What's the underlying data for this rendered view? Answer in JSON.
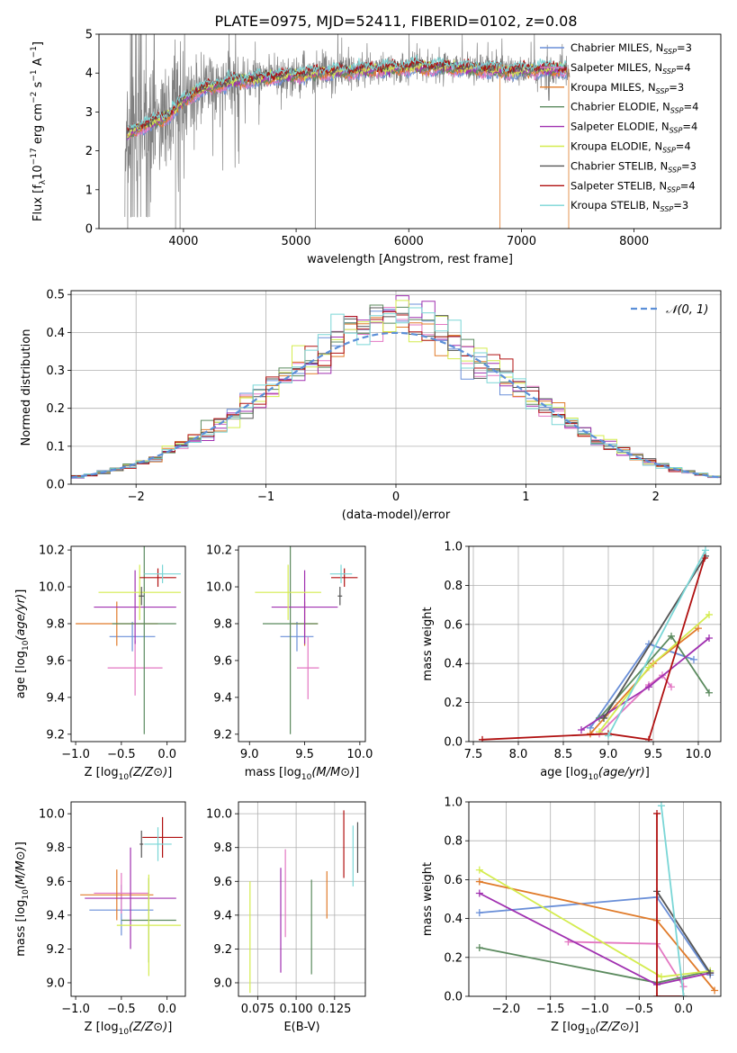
{
  "title": "PLATE=0975, MJD=52411, FIBERID=0102, z=0.08",
  "colors": {
    "chabrier_miles": "#6a8fd8",
    "salpeter_miles": "#e377c2",
    "kroupa_miles": "#e07b2a",
    "chabrier_elodie": "#5b8a5e",
    "salpeter_elodie": "#a030b0",
    "kroupa_elodie": "#d4ec4e",
    "chabrier_stelib": "#555555",
    "salpeter_stelib": "#b01010",
    "kroupa_stelib": "#7ad6d6",
    "data": "#808080",
    "normal": "#5b8fd8"
  },
  "chart_data": [
    {
      "type": "line",
      "id": "spectrum",
      "xlabel": "wavelength [Angstrom, rest frame]",
      "ylabel": "Flux [f_λ10^-17 erg cm^-2 s^-1 A^-1]",
      "xlim": [
        3250,
        8770
      ],
      "ylim": [
        0,
        5
      ],
      "xticks": [
        "4000",
        "5000",
        "6000",
        "7000",
        "8000"
      ],
      "yticks": [
        "0",
        "1",
        "2",
        "3",
        "4",
        "5"
      ],
      "legend_position": "right",
      "legend": [
        {
          "key": "chabrier_miles",
          "label": "Chabrier MILES, N",
          "sub": "SSP",
          "tail": "=3"
        },
        {
          "key": "salpeter_miles",
          "label": "Salpeter MILES, N",
          "sub": "SSP",
          "tail": "=4"
        },
        {
          "key": "kroupa_miles",
          "label": "Kroupa MILES, N",
          "sub": "SSP",
          "tail": "=3"
        },
        {
          "key": "chabrier_elodie",
          "label": "Chabrier ELODIE, N",
          "sub": "SSP",
          "tail": "=4"
        },
        {
          "key": "salpeter_elodie",
          "label": "Salpeter ELODIE, N",
          "sub": "SSP",
          "tail": "=4"
        },
        {
          "key": "kroupa_elodie",
          "label": "Kroupa ELODIE, N",
          "sub": "SSP",
          "tail": "=4"
        },
        {
          "key": "chabrier_stelib",
          "label": "Chabrier STELIB, N",
          "sub": "SSP",
          "tail": "=3"
        },
        {
          "key": "salpeter_stelib",
          "label": "Salpeter STELIB, N",
          "sub": "SSP",
          "tail": "=4"
        },
        {
          "key": "kroupa_stelib",
          "label": "Kroupa STELIB, N",
          "sub": "SSP",
          "tail": "=3"
        }
      ],
      "continuum": {
        "x": [
          3500,
          3600,
          3700,
          3800,
          3900,
          4000,
          4100,
          4200,
          4300,
          4500,
          4800,
          5000,
          5200,
          5500,
          5800,
          6000,
          6300,
          6600,
          6900,
          7200,
          7400
        ],
        "y": [
          2.4,
          2.6,
          2.7,
          2.8,
          3.0,
          3.3,
          3.5,
          3.6,
          3.7,
          3.8,
          3.9,
          3.95,
          4.0,
          4.05,
          4.1,
          4.15,
          4.15,
          4.1,
          4.05,
          4.1,
          4.1
        ]
      }
    },
    {
      "type": "line",
      "id": "residuals",
      "xlabel": "(data-model)/error",
      "ylabel": "Normed distribution",
      "xlim": [
        -2.5,
        2.5
      ],
      "ylim": [
        0,
        0.51
      ],
      "xticks": [
        "−2",
        "−1",
        "0",
        "1",
        "2"
      ],
      "yticks": [
        "0.0",
        "0.1",
        "0.2",
        "0.3",
        "0.4",
        "0.5"
      ],
      "legend_position": "top-right",
      "normal_label": "𝒩(0, 1)",
      "bin_width": 0.1
    },
    {
      "type": "scatter",
      "id": "age_vs_Z",
      "xlabel": "Z [log10(Z/Z⊙)]",
      "ylabel": "age [log10(age/yr)]",
      "xlim": [
        -1.05,
        0.2
      ],
      "ylim": [
        9.16,
        10.22
      ],
      "xticks": [
        "−1.0",
        "−0.5",
        "0.0"
      ],
      "yticks": [
        "9.2",
        "9.4",
        "9.6",
        "9.8",
        "10.0",
        "10.2"
      ],
      "points": [
        {
          "key": "chabrier_miles",
          "x": -0.38,
          "xerr": 0.25,
          "y": 9.73,
          "yerr": 0.08
        },
        {
          "key": "salpeter_miles",
          "x": -0.35,
          "xerr": 0.3,
          "y": 9.56,
          "yerr": 0.15
        },
        {
          "key": "kroupa_miles",
          "x": -0.55,
          "xerr": 0.45,
          "y": 9.8,
          "yerr": 0.12
        },
        {
          "key": "chabrier_elodie",
          "x": -0.25,
          "xerr": 0.35,
          "y": 9.8,
          "yerr": 0.6
        },
        {
          "key": "salpeter_elodie",
          "x": -0.35,
          "xerr": 0.45,
          "y": 9.89,
          "yerr": 0.2
        },
        {
          "key": "kroupa_elodie",
          "x": -0.3,
          "xerr": 0.45,
          "y": 9.97,
          "yerr": 0.15
        },
        {
          "key": "chabrier_stelib",
          "x": -0.28,
          "xerr": 0.03,
          "y": 9.95,
          "yerr": 0.05
        },
        {
          "key": "salpeter_stelib",
          "x": -0.1,
          "xerr": 0.2,
          "y": 10.05,
          "yerr": 0.05
        },
        {
          "key": "kroupa_stelib",
          "x": -0.05,
          "xerr": 0.2,
          "y": 10.07,
          "yerr": 0.05
        }
      ]
    },
    {
      "type": "scatter",
      "id": "age_vs_mass",
      "xlabel": "mass [log10(M/M⊙)]",
      "ylabel": "",
      "xlim": [
        8.9,
        10.05
      ],
      "ylim": [
        9.16,
        10.22
      ],
      "xticks": [
        "9.0",
        "9.5",
        "10.0"
      ],
      "yticks": [
        "9.2",
        "9.4",
        "9.6",
        "9.8",
        "10.0",
        "10.2"
      ],
      "points": [
        {
          "key": "chabrier_miles",
          "x": 9.43,
          "xerr": 0.15,
          "y": 9.73,
          "yerr": 0.08
        },
        {
          "key": "salpeter_miles",
          "x": 9.53,
          "xerr": 0.1,
          "y": 9.56,
          "yerr": 0.17
        },
        {
          "key": "kroupa_miles",
          "x": 9.5,
          "xerr": 0.12,
          "y": 9.8,
          "yerr": 0.12
        },
        {
          "key": "chabrier_elodie",
          "x": 9.37,
          "xerr": 0.25,
          "y": 9.8,
          "yerr": 0.6
        },
        {
          "key": "salpeter_elodie",
          "x": 9.5,
          "xerr": 0.3,
          "y": 9.89,
          "yerr": 0.2
        },
        {
          "key": "kroupa_elodie",
          "x": 9.35,
          "xerr": 0.3,
          "y": 9.97,
          "yerr": 0.15
        },
        {
          "key": "chabrier_stelib",
          "x": 9.82,
          "xerr": 0.02,
          "y": 9.95,
          "yerr": 0.05
        },
        {
          "key": "salpeter_stelib",
          "x": 9.86,
          "xerr": 0.12,
          "y": 10.05,
          "yerr": 0.05
        },
        {
          "key": "kroupa_stelib",
          "x": 9.83,
          "xerr": 0.1,
          "y": 10.07,
          "yerr": 0.05
        }
      ]
    },
    {
      "type": "line",
      "id": "weight_vs_age",
      "xlabel": "age [log10(age/yr)]",
      "ylabel": "mass weight",
      "xlim": [
        7.45,
        10.25
      ],
      "ylim": [
        0,
        1
      ],
      "xticks": [
        "7.5",
        "8.0",
        "8.5",
        "9.0",
        "9.5",
        "10.0"
      ],
      "yticks": [
        "0.0",
        "0.2",
        "0.4",
        "0.6",
        "0.8",
        "1.0"
      ],
      "series": [
        {
          "key": "chabrier_miles",
          "x": [
            8.8,
            9.45,
            9.95
          ],
          "y": [
            0.07,
            0.5,
            0.42
          ]
        },
        {
          "key": "salpeter_miles",
          "x": [
            8.9,
            9.45,
            9.6,
            9.7
          ],
          "y": [
            0.04,
            0.29,
            0.34,
            0.28
          ]
        },
        {
          "key": "kroupa_miles",
          "x": [
            8.8,
            9.5,
            10.0
          ],
          "y": [
            0.04,
            0.4,
            0.58
          ]
        },
        {
          "key": "chabrier_elodie",
          "x": [
            8.9,
            9.7,
            10.12
          ],
          "y": [
            0.12,
            0.54,
            0.25
          ]
        },
        {
          "key": "salpeter_elodie",
          "x": [
            8.7,
            9.45,
            10.12
          ],
          "y": [
            0.06,
            0.28,
            0.53
          ]
        },
        {
          "key": "kroupa_elodie",
          "x": [
            8.9,
            9.45,
            10.12
          ],
          "y": [
            0.05,
            0.38,
            0.65
          ]
        },
        {
          "key": "chabrier_stelib",
          "x": [
            8.95,
            10.08
          ],
          "y": [
            0.12,
            0.95
          ]
        },
        {
          "key": "salpeter_stelib",
          "x": [
            7.6,
            9.0,
            9.45,
            10.07
          ],
          "y": [
            0.01,
            0.04,
            0.01,
            0.94
          ]
        },
        {
          "key": "kroupa_stelib",
          "x": [
            9.0,
            10.08
          ],
          "y": [
            0.03,
            0.98
          ]
        }
      ]
    },
    {
      "type": "scatter",
      "id": "mass_vs_Z",
      "xlabel": "Z [log10(Z/Z⊙)]",
      "ylabel": "mass [log10(M/M⊙)]",
      "xlim": [
        -1.05,
        0.2
      ],
      "ylim": [
        8.92,
        10.07
      ],
      "xticks": [
        "−1.0",
        "−0.5",
        "0.0"
      ],
      "yticks": [
        "9.0",
        "9.2",
        "9.4",
        "9.6",
        "9.8",
        "10.0"
      ],
      "points": [
        {
          "key": "chabrier_miles",
          "x": -0.5,
          "xerr": 0.35,
          "y": 9.43,
          "yerr": 0.15
        },
        {
          "key": "salpeter_miles",
          "x": -0.5,
          "xerr": 0.3,
          "y": 9.53,
          "yerr": 0.12
        },
        {
          "key": "kroupa_miles",
          "x": -0.55,
          "xerr": 0.4,
          "y": 9.52,
          "yerr": 0.15
        },
        {
          "key": "chabrier_elodie",
          "x": -0.2,
          "xerr": 0.3,
          "y": 9.37,
          "yerr": 0.25
        },
        {
          "key": "salpeter_elodie",
          "x": -0.4,
          "xerr": 0.5,
          "y": 9.5,
          "yerr": 0.3
        },
        {
          "key": "kroupa_elodie",
          "x": -0.2,
          "xerr": 0.35,
          "y": 9.34,
          "yerr": 0.3
        },
        {
          "key": "chabrier_stelib",
          "x": -0.28,
          "xerr": 0.02,
          "y": 9.82,
          "yerr": 0.08
        },
        {
          "key": "salpeter_stelib",
          "x": -0.05,
          "xerr": 0.22,
          "y": 9.86,
          "yerr": 0.12
        },
        {
          "key": "kroupa_stelib",
          "x": -0.1,
          "xerr": 0.15,
          "y": 9.82,
          "yerr": 0.1
        }
      ]
    },
    {
      "type": "scatter",
      "id": "mass_vs_ebv",
      "xlabel": "E(B-V)",
      "ylabel": "",
      "xlim": [
        0.0625,
        0.145
      ],
      "ylim": [
        8.92,
        10.07
      ],
      "xticks": [
        "0.075",
        "0.100",
        "0.125"
      ],
      "yticks": [
        "9.0",
        "9.2",
        "9.4",
        "9.6",
        "9.8",
        "10.0"
      ],
      "points": [
        {
          "key": "kroupa_elodie",
          "x": 0.07,
          "y": 9.27,
          "yerr": 0.33
        },
        {
          "key": "salpeter_elodie",
          "x": 0.09,
          "y": 9.37,
          "yerr": 0.31
        },
        {
          "key": "salpeter_miles",
          "x": 0.093,
          "y": 9.53,
          "yerr": 0.26
        },
        {
          "key": "chabrier_elodie",
          "x": 0.11,
          "y": 9.33,
          "yerr": 0.28
        },
        {
          "key": "kroupa_miles",
          "x": 0.12,
          "y": 9.52,
          "yerr": 0.14
        },
        {
          "key": "salpeter_stelib",
          "x": 0.131,
          "y": 9.82,
          "yerr": 0.2
        },
        {
          "key": "kroupa_stelib",
          "x": 0.137,
          "y": 9.75,
          "yerr": 0.18
        },
        {
          "key": "chabrier_stelib",
          "x": 0.14,
          "y": 9.8,
          "yerr": 0.15
        }
      ]
    },
    {
      "type": "line",
      "id": "weight_vs_Z",
      "xlabel": "Z [log10(Z/Z⊙)]",
      "ylabel": "mass weight",
      "xlim": [
        -2.42,
        0.42
      ],
      "ylim": [
        0,
        1
      ],
      "xticks": [
        "−2.0",
        "−1.5",
        "−1.0",
        "−0.5",
        "0.0"
      ],
      "yticks": [
        "0.0",
        "0.2",
        "0.4",
        "0.6",
        "0.8",
        "1.0"
      ],
      "series": [
        {
          "key": "chabrier_miles",
          "x": [
            -2.3,
            -0.3,
            0.3
          ],
          "y": [
            0.43,
            0.51,
            0.11
          ]
        },
        {
          "key": "salpeter_miles",
          "x": [
            -1.3,
            -0.3,
            0.0
          ],
          "y": [
            0.28,
            0.27,
            0.05
          ]
        },
        {
          "key": "kroupa_miles",
          "x": [
            -2.3,
            -0.3,
            0.35
          ],
          "y": [
            0.59,
            0.39,
            0.03
          ]
        },
        {
          "key": "chabrier_elodie",
          "x": [
            -2.3,
            -0.3,
            0.3
          ],
          "y": [
            0.25,
            0.07,
            0.13
          ]
        },
        {
          "key": "salpeter_elodie",
          "x": [
            -2.3,
            -0.3,
            0.3
          ],
          "y": [
            0.53,
            0.06,
            0.12
          ]
        },
        {
          "key": "kroupa_elodie",
          "x": [
            -2.3,
            -0.25,
            0.3
          ],
          "y": [
            0.65,
            0.1,
            0.13
          ]
        },
        {
          "key": "chabrier_stelib",
          "x": [
            -0.3,
            0.3
          ],
          "y": [
            0.54,
            0.12
          ]
        },
        {
          "key": "salpeter_stelib",
          "x": [
            -0.3,
            -0.3,
            0.0
          ],
          "y": [
            0.94,
            0.0,
            0.0
          ]
        },
        {
          "key": "kroupa_stelib",
          "x": [
            -0.25,
            0.0
          ],
          "y": [
            0.98,
            0.0
          ]
        }
      ]
    }
  ]
}
